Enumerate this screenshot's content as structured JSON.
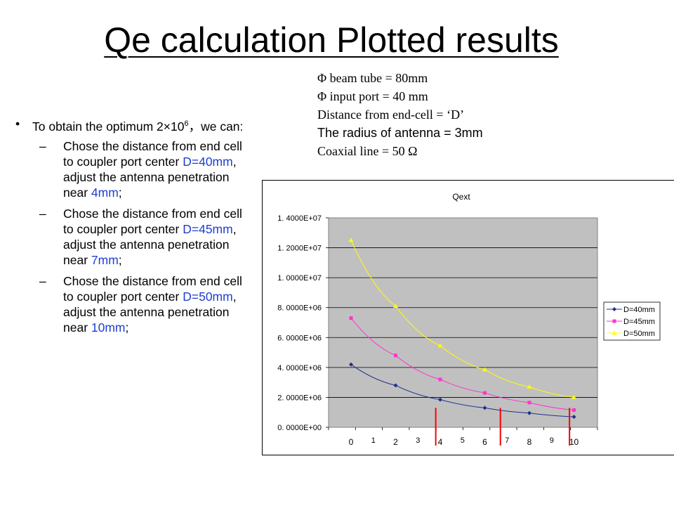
{
  "slide": {
    "title": "Qe calculation Plotted results",
    "params": [
      "Φ  beam tube = 80mm",
      "Φ  input port  = 40 mm",
      "Distance from end-cell = ‘D’",
      "The radius of antenna = 3mm",
      "Coaxial line  = 50  Ω"
    ],
    "bullet": {
      "marker": "•",
      "text_a": "To obtain the optimum 2×10",
      "sup": "6",
      "text_b": "，we can:"
    },
    "subs": [
      {
        "dash": "–",
        "t1": "Chose the distance from end cell to coupler port center ",
        "d": "D=40mm",
        "t2": ", adjust the antenna penetration near ",
        "v": "4mm",
        "t3": ";"
      },
      {
        "dash": "–",
        "t1": "Chose the distance from end cell to coupler port center ",
        "d": "D=45mm",
        "t2": ", adjust the antenna penetration near ",
        "v": "7mm",
        "t3": ";"
      },
      {
        "dash": "–",
        "t1": "Chose the distance from end cell to coupler port center ",
        "d": "D=50mm",
        "t2": ", adjust the antenna penetration near ",
        "v": "10mm",
        "t3": ";"
      }
    ]
  },
  "chart_data": {
    "type": "line",
    "title": "Qext",
    "x": [
      0,
      2,
      4,
      6,
      8,
      10
    ],
    "x_tick_labels": [
      "0",
      "2",
      "4",
      "6",
      "8",
      "10"
    ],
    "x_minor_labels": [
      "1",
      "3",
      "5",
      "7",
      "9"
    ],
    "y_tick_labels": [
      "0. 0000E+00",
      "2. 0000E+06",
      "4. 0000E+06",
      "6. 0000E+06",
      "8. 0000E+06",
      "1. 0000E+07",
      "1. 2000E+07",
      "1. 4000E+07"
    ],
    "ylim": [
      0,
      14000000
    ],
    "series": [
      {
        "name": "D=40mm",
        "color": "#1f2f8f",
        "marker": "diamond",
        "values": [
          4200000,
          2800000,
          1850000,
          1300000,
          950000,
          700000
        ]
      },
      {
        "name": "D=45mm",
        "color": "#ff33cc",
        "marker": "square",
        "values": [
          7300000,
          4800000,
          3200000,
          2300000,
          1650000,
          1150000
        ]
      },
      {
        "name": "D=50mm",
        "color": "#ffff00",
        "marker": "triangle",
        "values": [
          12500000,
          8100000,
          5450000,
          3850000,
          2700000,
          2000000
        ]
      }
    ],
    "annotation_lines_x": [
      3.8,
      6.7,
      9.8
    ],
    "annotation_color": "#ff0000",
    "plot_bg": "#c0c0c0",
    "grid": true,
    "legend_position": "right"
  }
}
